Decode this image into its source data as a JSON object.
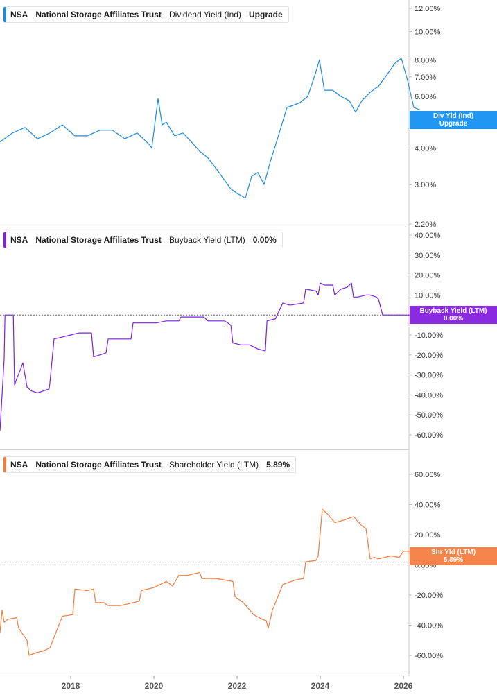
{
  "ticker": "NSA",
  "company": "National Storage Affiliates Trust",
  "colors": {
    "div": "#1f8ae0",
    "buyback": "#7b1fe0",
    "shareholder": "#f07b3c",
    "divFlag": "#2196f3",
    "buybackFlag": "#8a2be2",
    "shareholderFlag": "#f5844a"
  },
  "panels": {
    "div": {
      "metric": "Dividend Yield (Ind)",
      "value": "Upgrade",
      "flag_line1": "Div Yld (Ind)",
      "flag_line2": "Upgrade",
      "flag_behind": "5.0"
    },
    "buyback": {
      "metric": "Buyback Yield (LTM)",
      "value": "0.00%",
      "flag_line1": "Buyback Yield (LTM)",
      "flag_line2": "0.00%"
    },
    "shareholder": {
      "metric": "Shareholder Yield (LTM)",
      "value": "5.89%",
      "flag_line1": "Shr Yld (LTM)",
      "flag_line2": "5.89%"
    }
  },
  "chart_data": [
    {
      "type": "line",
      "title": "NSA National Storage Affiliates Trust Dividend Yield (Ind)",
      "yscale": "log",
      "ylim": [
        2.2,
        12.8
      ],
      "yticks": [
        "12.00%",
        "10.00%",
        "8.00%",
        "7.00%",
        "6.00%",
        "4.00%",
        "3.00%",
        "2.20%"
      ],
      "ytick_values": [
        12,
        10,
        8,
        7,
        6,
        4,
        3,
        2.2
      ],
      "xlim": [
        2016.3,
        2026.8
      ],
      "series": [
        {
          "x": [
            2016.3,
            2016.6,
            2016.9,
            2017.2,
            2017.5,
            2017.8,
            2018.1,
            2018.4,
            2018.7,
            2019.0,
            2019.3,
            2019.6,
            2019.9,
            2019.95,
            2020.1,
            2020.2,
            2020.3,
            2020.5,
            2020.7,
            2020.9,
            2021.1,
            2021.3,
            2021.5,
            2021.7,
            2021.85,
            2022.0,
            2022.2,
            2022.35,
            2022.5,
            2022.65,
            2022.8,
            2022.95,
            2023.2,
            2023.5,
            2023.7,
            2023.9,
            2023.98,
            2024.1,
            2024.3,
            2024.5,
            2024.7,
            2024.85,
            2025.0,
            2025.2,
            2025.4,
            2025.6,
            2025.8,
            2025.95,
            2026.1,
            2026.25,
            2026.4
          ],
          "values": [
            4.2,
            4.5,
            4.7,
            4.3,
            4.5,
            4.8,
            4.4,
            4.4,
            4.6,
            4.6,
            4.3,
            4.5,
            4.1,
            4.0,
            5.9,
            4.8,
            4.9,
            4.4,
            4.5,
            4.2,
            3.9,
            3.7,
            3.4,
            3.1,
            2.9,
            2.8,
            2.7,
            3.2,
            3.3,
            3.0,
            3.6,
            4.2,
            5.5,
            5.7,
            6.0,
            7.3,
            8.0,
            6.3,
            6.3,
            6.0,
            5.8,
            5.3,
            5.8,
            6.2,
            6.5,
            7.1,
            7.8,
            8.1,
            6.8,
            5.5,
            5.4
          ]
        }
      ]
    },
    {
      "type": "line",
      "title": "NSA National Storage Affiliates Trust Buyback Yield (LTM)",
      "ylim": [
        -63,
        41
      ],
      "yticks": [
        "40.00%",
        "30.00%",
        "20.00%",
        "10.00%",
        "-10.00%",
        "-20.00%",
        "-30.00%",
        "-40.00%",
        "-50.00%",
        "-60.00%"
      ],
      "ytick_values": [
        40,
        30,
        20,
        10,
        -10,
        -20,
        -30,
        -40,
        -50,
        -60
      ],
      "baseline": 0,
      "xlim": [
        2016.3,
        2026.8
      ],
      "series": [
        {
          "x": [
            2016.3,
            2016.35,
            2016.4,
            2016.42,
            2016.5,
            2016.62,
            2016.65,
            2016.7,
            2016.78,
            2016.85,
            2016.95,
            2017.05,
            2017.2,
            2017.35,
            2017.48,
            2017.5,
            2017.6,
            2017.8,
            2018.0,
            2018.2,
            2018.4,
            2018.5,
            2018.55,
            2018.7,
            2018.85,
            2018.9,
            2019.0,
            2019.2,
            2019.45,
            2019.5,
            2019.7,
            2019.95,
            2020.05,
            2020.3,
            2020.6,
            2020.65,
            2020.9,
            2021.2,
            2021.3,
            2021.5,
            2021.7,
            2021.85,
            2021.9,
            2022.1,
            2022.3,
            2022.5,
            2022.68,
            2022.72,
            2022.9,
            2022.92,
            2023.1,
            2023.25,
            2023.3,
            2023.6,
            2023.65,
            2023.9,
            2023.95,
            2024.0,
            2024.1,
            2024.3,
            2024.35,
            2024.5,
            2024.65,
            2024.75,
            2024.8,
            2024.9,
            2025.1,
            2025.2,
            2025.35,
            2025.4,
            2025.5,
            2025.7,
            2026.0,
            2026.2
          ],
          "values": [
            -58,
            -40,
            -22,
            0,
            0,
            0,
            -35,
            -32,
            -28,
            -24,
            -36,
            -38,
            -39,
            -38,
            -37,
            -34,
            -12,
            -11,
            -10,
            -9,
            -9,
            -9,
            -21,
            -20,
            -19,
            -12,
            -12,
            -12,
            -12,
            -4,
            -4,
            -4,
            -4,
            -3,
            -3,
            -1,
            -1,
            -1,
            -3,
            -3,
            -3,
            -5,
            -14,
            -15,
            -15,
            -17,
            -18,
            -3,
            -2,
            -2,
            6,
            5,
            5,
            6,
            13,
            12,
            10,
            16,
            15,
            15,
            10,
            13,
            14,
            16,
            9,
            9,
            10,
            10,
            9,
            8,
            0,
            0,
            0,
            0
          ]
        }
      ]
    },
    {
      "type": "line",
      "title": "NSA National Storage Affiliates Trust Shareholder Yield (LTM)",
      "ylim": [
        -67,
        68
      ],
      "yticks": [
        "60.00%",
        "40.00%",
        "20.00%",
        "0.00%",
        "-20.00%",
        "-40.00%",
        "-60.00%"
      ],
      "ytick_values": [
        60,
        40,
        20,
        0,
        -20,
        -40,
        -60
      ],
      "baseline": 0,
      "xticks": [
        "2018",
        "2020",
        "2022",
        "2024",
        "2026"
      ],
      "xtick_values": [
        2018,
        2020,
        2022,
        2024,
        2026
      ],
      "xlim": [
        2016.3,
        2026.8
      ],
      "series": [
        {
          "x": [
            2016.3,
            2016.35,
            2016.4,
            2016.5,
            2016.7,
            2016.75,
            2016.95,
            2017.0,
            2017.2,
            2017.35,
            2017.5,
            2017.8,
            2018.05,
            2018.1,
            2018.4,
            2018.55,
            2018.6,
            2018.8,
            2018.9,
            2019.2,
            2019.5,
            2019.65,
            2019.7,
            2020.0,
            2020.3,
            2020.45,
            2020.6,
            2020.8,
            2021.1,
            2021.15,
            2021.5,
            2021.9,
            2021.95,
            2022.15,
            2022.4,
            2022.6,
            2022.7,
            2022.75,
            2022.85,
            2023.1,
            2023.4,
            2023.6,
            2023.65,
            2023.9,
            2023.95,
            2024.05,
            2024.2,
            2024.35,
            2024.6,
            2024.8,
            2025.0,
            2025.1,
            2025.2,
            2025.3,
            2025.4,
            2025.7,
            2025.9,
            2026.0,
            2026.2,
            2026.35,
            2026.45
          ],
          "values": [
            -45,
            -30,
            -38,
            -36,
            -35,
            -42,
            -50,
            -60,
            -58,
            -57,
            -55,
            -34,
            -33,
            -16,
            -17,
            -16,
            -25,
            -25,
            -27,
            -27,
            -25,
            -24,
            -17,
            -15,
            -11,
            -14,
            -7,
            -7,
            -5,
            -9,
            -9,
            -11,
            -21,
            -25,
            -33,
            -36,
            -37,
            -42,
            -30,
            -13,
            -10,
            -9,
            2,
            3,
            6,
            37,
            33,
            28,
            30,
            32,
            26,
            24,
            4,
            5,
            4,
            6,
            5,
            9,
            9,
            7,
            6
          ]
        }
      ]
    }
  ]
}
